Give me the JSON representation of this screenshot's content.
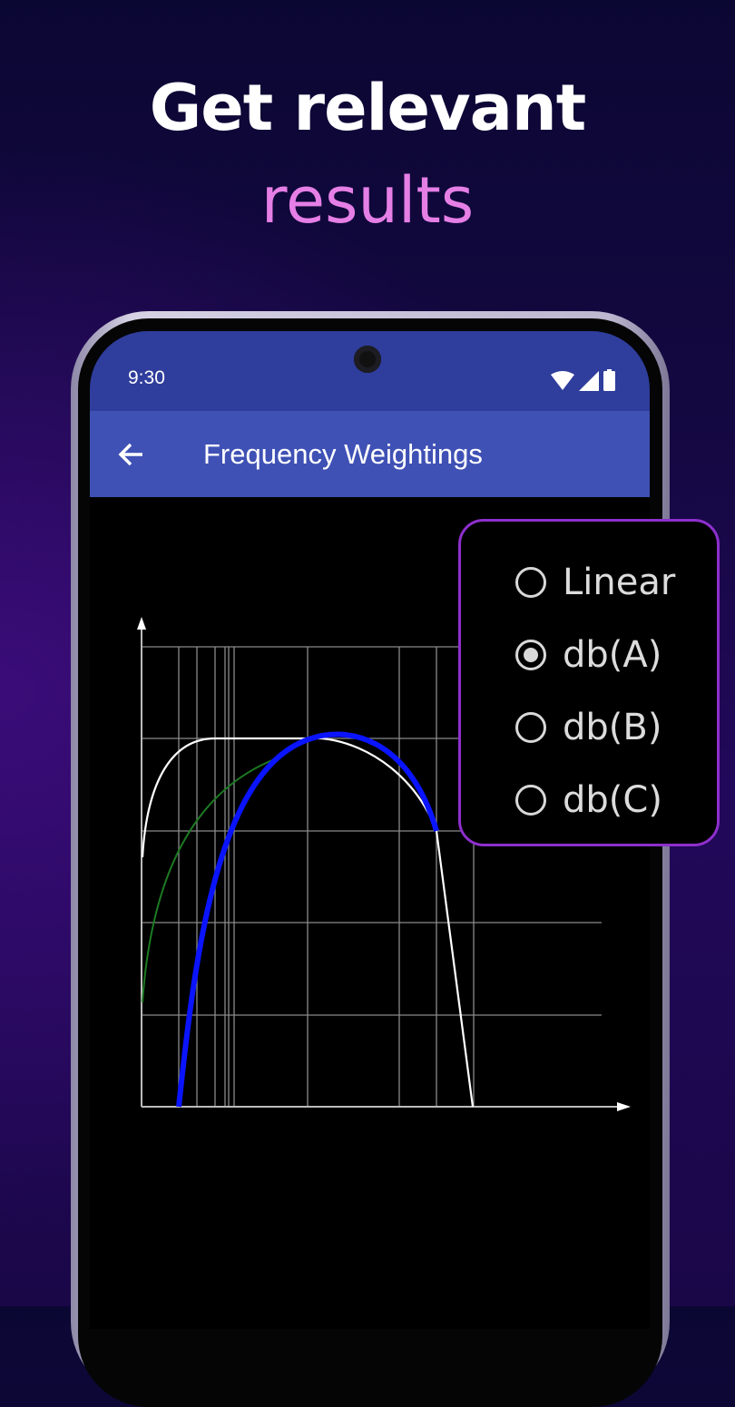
{
  "headline": {
    "line1": "Get relevant",
    "line2": "results"
  },
  "status_bar": {
    "time": "9:30",
    "icons": [
      "wifi-icon",
      "signal-icon",
      "battery-icon"
    ]
  },
  "toolbar": {
    "title": "Frequency Weightings",
    "back_icon": "arrow-left-icon"
  },
  "weighting_options": {
    "items": [
      {
        "label": "Linear",
        "selected": false
      },
      {
        "label": "db(A)",
        "selected": true
      },
      {
        "label": "db(B)",
        "selected": false
      },
      {
        "label": "db(C)",
        "selected": false
      }
    ]
  },
  "colors": {
    "accent": "#3f51b5",
    "status_bar": "#2f3d9c",
    "popup_border": "#8e2fcc",
    "headline_accent": "#e57fe6",
    "curve_a": "#0a14ff",
    "curve_b": "#1c7a22",
    "curve_c": "#ffffff"
  }
}
